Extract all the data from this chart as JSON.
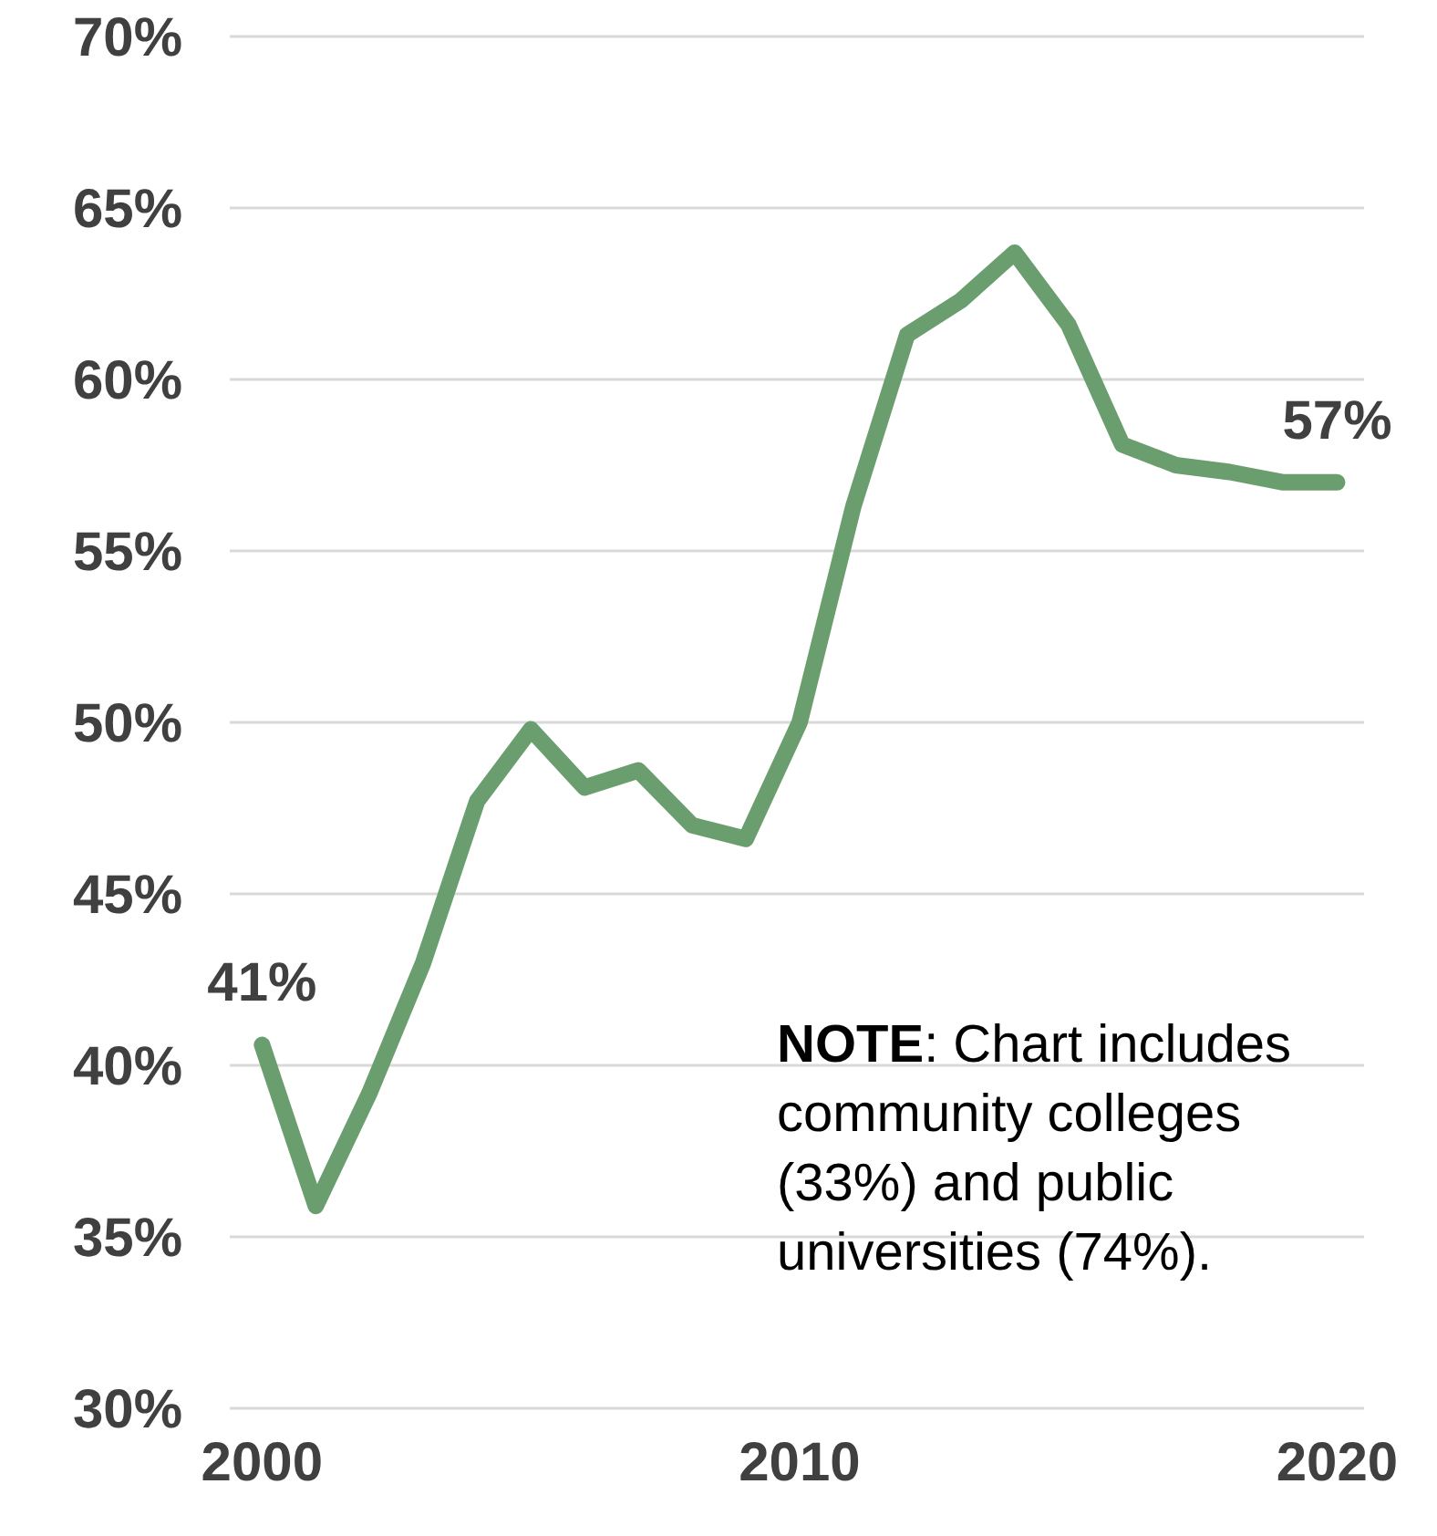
{
  "chart_data": {
    "type": "line",
    "x": [
      2000,
      2001,
      2002,
      2003,
      2004,
      2005,
      2006,
      2007,
      2008,
      2009,
      2010,
      2011,
      2012,
      2013,
      2014,
      2015,
      2016,
      2017,
      2018,
      2019,
      2020
    ],
    "series": [
      {
        "color": "#6a9e6f",
        "values": [
          40.6,
          35.9,
          39.2,
          43.0,
          47.7,
          49.8,
          48.1,
          48.6,
          47.0,
          46.6,
          50.0,
          56.3,
          61.3,
          62.3,
          63.7,
          61.6,
          58.1,
          57.5,
          57.3,
          57.0,
          57.0
        ]
      }
    ],
    "xlim": [
      1999.4,
      2020.5
    ],
    "xticks": [
      2000,
      2010,
      2020
    ],
    "ylim": [
      30,
      70
    ],
    "yticks": [
      {
        "value": 30,
        "label": "30%"
      },
      {
        "value": 35,
        "label": "35%"
      },
      {
        "value": 40,
        "label": "40%"
      },
      {
        "value": 45,
        "label": "45%"
      },
      {
        "value": 50,
        "label": "50%"
      },
      {
        "value": 55,
        "label": "55%"
      },
      {
        "value": 60,
        "label": "60%"
      },
      {
        "value": 65,
        "label": "65%"
      },
      {
        "value": 70,
        "label": "70%"
      }
    ],
    "grid": "y",
    "marker": "none",
    "line_style": "solid",
    "annotations": [
      {
        "text": "41%",
        "x": 2000,
        "y": 40.6
      },
      {
        "text": "57%",
        "x": 2020,
        "y": 57.0
      },
      "NOTE: Chart includes community colleges (33%) and public universities (74%)."
    ]
  }
}
